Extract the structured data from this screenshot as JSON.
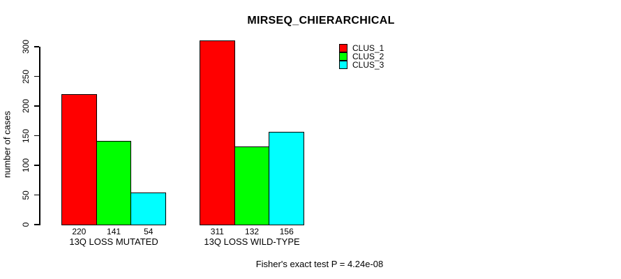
{
  "title": "MIRSEQ_CHIERARCHICAL",
  "footer": "Fisher's exact test P = 4.24e-08",
  "chart_data": {
    "type": "bar",
    "title": "MIRSEQ_CHIERARCHICAL",
    "xlabel": "",
    "ylabel": "number of cases",
    "ylim": [
      0,
      300
    ],
    "yticks": [
      0,
      50,
      100,
      150,
      200,
      250,
      300
    ],
    "grid": false,
    "legend_position": "top-right",
    "categories": [
      "13Q LOSS MUTATED",
      "13Q LOSS WILD-TYPE"
    ],
    "series": [
      {
        "name": "CLUS_1",
        "color": "#FF0000",
        "values": [
          220,
          311
        ]
      },
      {
        "name": "CLUS_2",
        "color": "#00FF00",
        "values": [
          141,
          132
        ]
      },
      {
        "name": "CLUS_3",
        "color": "#00FFFF",
        "values": [
          54,
          156
        ]
      }
    ],
    "bar_value_labels": [
      [
        220,
        141,
        54
      ],
      [
        311,
        132,
        156
      ]
    ],
    "annotation": "Fisher's exact test P = 4.24e-08"
  },
  "legend": {
    "items": [
      {
        "label": "CLUS_1",
        "color": "#FF0000"
      },
      {
        "label": "CLUS_2",
        "color": "#00FF00"
      },
      {
        "label": "CLUS_3",
        "color": "#00FFFF"
      }
    ]
  }
}
